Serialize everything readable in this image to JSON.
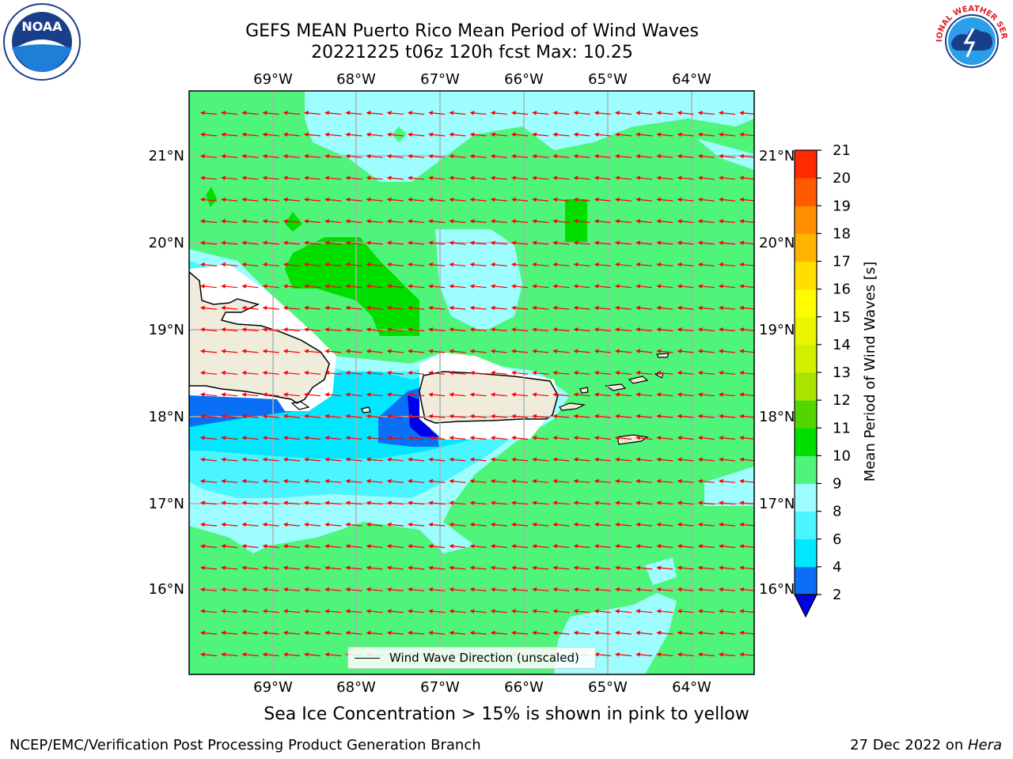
{
  "header": {
    "title_line1": "GEFS MEAN Puerto Rico Mean Period of Wind Waves",
    "title_line2": "20221225 t06z 120h fcst   Max: 10.25"
  },
  "logos": {
    "left": "NOAA",
    "right": "NATIONAL WEATHER SERVICE"
  },
  "map": {
    "lon_ticks": [
      "69°W",
      "68°W",
      "67°W",
      "66°W",
      "65°W",
      "64°W"
    ],
    "lat_ticks": [
      "21°N",
      "20°N",
      "19°N",
      "18°N",
      "17°N",
      "16°N"
    ],
    "legend_label": "Wind Wave Direction (unscaled)",
    "arrow_color": "#ff0000",
    "land_color": "#efecdc"
  },
  "colorbar": {
    "label": "Mean Period of Wind Waves [s]",
    "ticks": [
      "2",
      "4",
      "6",
      "8",
      "9",
      "10",
      "11",
      "12",
      "13",
      "14",
      "15",
      "16",
      "17",
      "18",
      "19",
      "20",
      "21"
    ],
    "colors": [
      "#0a6ff5",
      "#00e7ff",
      "#4af5ff",
      "#9efdff",
      "#4ef57a",
      "#00de00",
      "#55d500",
      "#a8e400",
      "#d0f000",
      "#eaf500",
      "#fffb00",
      "#ffde00",
      "#ffb400",
      "#ff8f00",
      "#ff5a00",
      "#ff2a00",
      "#ff0000"
    ],
    "under_color": "#0000e6"
  },
  "notes": {
    "sea_ice": "Sea Ice Concentration > 15% is shown in pink to yellow"
  },
  "footer": {
    "left": "NCEP/EMC/Verification Post Processing Product Generation Branch",
    "date": "27 Dec 2022 on ",
    "host": "Hera"
  }
}
